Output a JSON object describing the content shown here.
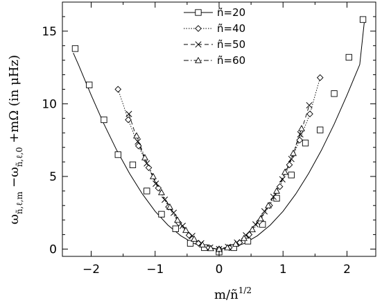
{
  "chart_data": {
    "type": "scatter",
    "xlabel": "m/ñ^1/2",
    "ylabel": "ω(ñ,ℓ,m) − ω(ñ,ℓ,0) + mΩ (in μHz)",
    "xlim": [
      -2.45,
      2.45
    ],
    "ylim": [
      -0.5,
      17
    ],
    "x_ticks": [
      -2,
      -1,
      0,
      1,
      2
    ],
    "y_ticks": [
      0,
      5,
      10,
      15
    ],
    "legend_position": "top-center",
    "fit_curve": {
      "x": [
        -2.28,
        -2.2,
        -2.0,
        -1.8,
        -1.6,
        -1.4,
        -1.2,
        -1.0,
        -0.8,
        -0.6,
        -0.4,
        -0.2,
        0.0,
        0.2,
        0.4,
        0.6,
        0.8,
        1.0,
        1.2,
        1.4,
        1.6,
        1.8,
        2.0,
        2.2,
        2.27
      ],
      "y": [
        13.5,
        12.7,
        10.6,
        8.6,
        6.8,
        5.2,
        3.8,
        2.6,
        1.65,
        0.92,
        0.4,
        0.1,
        0.0,
        0.1,
        0.4,
        0.92,
        1.65,
        2.6,
        3.8,
        5.2,
        6.8,
        8.6,
        10.6,
        12.7,
        15.6
      ]
    },
    "series": [
      {
        "name": "ñ=20",
        "marker": "square",
        "line": "solid",
        "x": [
          -2.25,
          -2.03,
          -1.8,
          -1.58,
          -1.35,
          -1.13,
          -0.9,
          -0.68,
          -0.45,
          -0.23,
          0.0,
          0.23,
          0.45,
          0.68,
          0.9,
          1.13,
          1.35,
          1.58,
          1.8,
          2.03,
          2.25
        ],
        "y": [
          13.8,
          11.3,
          8.9,
          6.5,
          5.8,
          4.0,
          2.4,
          1.4,
          0.4,
          0.1,
          -0.2,
          0.1,
          0.55,
          1.7,
          3.5,
          5.1,
          7.3,
          8.2,
          10.7,
          13.2,
          15.8
        ]
      },
      {
        "name": "ñ=40",
        "marker": "diamond",
        "line": "dotted",
        "x": [
          -1.58,
          -1.42,
          -1.26,
          -1.1,
          -0.95,
          -0.79,
          -0.63,
          -0.47,
          -0.32,
          -0.16,
          0.0,
          0.16,
          0.32,
          0.47,
          0.63,
          0.79,
          0.95,
          1.1,
          1.26,
          1.42,
          1.58
        ],
        "y": [
          11.0,
          8.9,
          7.1,
          5.6,
          4.2,
          2.9,
          1.8,
          0.95,
          0.4,
          0.1,
          0.0,
          0.1,
          0.45,
          1.0,
          1.9,
          3.0,
          4.3,
          5.8,
          7.5,
          9.3,
          11.8
        ]
      },
      {
        "name": "ñ=50",
        "marker": "cross",
        "line": "dashed",
        "x": [
          -1.41,
          -1.27,
          -1.13,
          -0.99,
          -0.85,
          -0.71,
          -0.57,
          -0.42,
          -0.28,
          -0.14,
          0.0,
          0.14,
          0.28,
          0.42,
          0.57,
          0.71,
          0.85,
          0.99,
          1.13,
          1.27,
          1.41
        ],
        "y": [
          9.3,
          7.4,
          5.9,
          4.5,
          3.4,
          2.5,
          1.6,
          0.9,
          0.4,
          0.1,
          0.0,
          0.15,
          0.45,
          0.95,
          1.7,
          2.6,
          3.6,
          4.8,
          6.2,
          7.9,
          9.9
        ]
      },
      {
        "name": "ñ=60",
        "marker": "triangle",
        "line": "dash-dot",
        "x": [
          -1.29,
          -1.16,
          -1.03,
          -0.9,
          -0.77,
          -0.65,
          -0.52,
          -0.39,
          -0.26,
          -0.13,
          0.0,
          0.13,
          0.26,
          0.39,
          0.52,
          0.65,
          0.77,
          0.9,
          1.03,
          1.16,
          1.29
        ],
        "y": [
          7.8,
          6.3,
          5.0,
          3.9,
          2.9,
          2.0,
          1.3,
          0.7,
          0.3,
          0.05,
          0.0,
          0.1,
          0.35,
          0.75,
          1.35,
          2.1,
          3.0,
          4.0,
          5.3,
          6.6,
          8.3
        ]
      }
    ]
  }
}
